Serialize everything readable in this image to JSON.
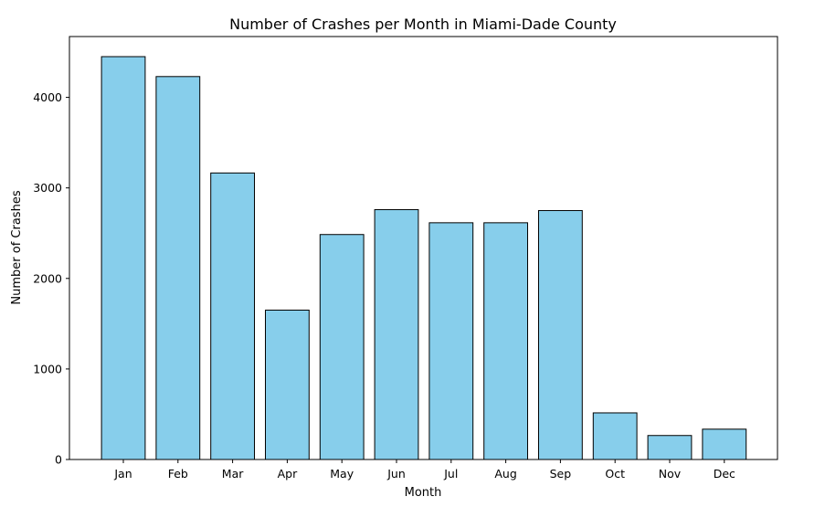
{
  "chart_data": {
    "type": "bar",
    "title": "Number of Crashes per Month in Miami-Dade County",
    "xlabel": "Month",
    "ylabel": "Number of Crashes",
    "categories": [
      "Jan",
      "Feb",
      "Mar",
      "Apr",
      "May",
      "Jun",
      "Jul",
      "Aug",
      "Sep",
      "Oct",
      "Nov",
      "Dec"
    ],
    "values": [
      4450,
      4230,
      3165,
      1650,
      2485,
      2760,
      2615,
      2615,
      2750,
      515,
      265,
      335
    ],
    "ylim": [
      0,
      4672
    ],
    "yticks": [
      0,
      1000,
      2000,
      3000,
      4000
    ],
    "ytick_labels": [
      "0",
      "1000",
      "2000",
      "3000",
      "4000"
    ],
    "grid": false,
    "colors": {
      "bar_fill": "#87ceeb",
      "bar_edge": "#000000",
      "axis": "#000000",
      "background": "#ffffff"
    }
  }
}
